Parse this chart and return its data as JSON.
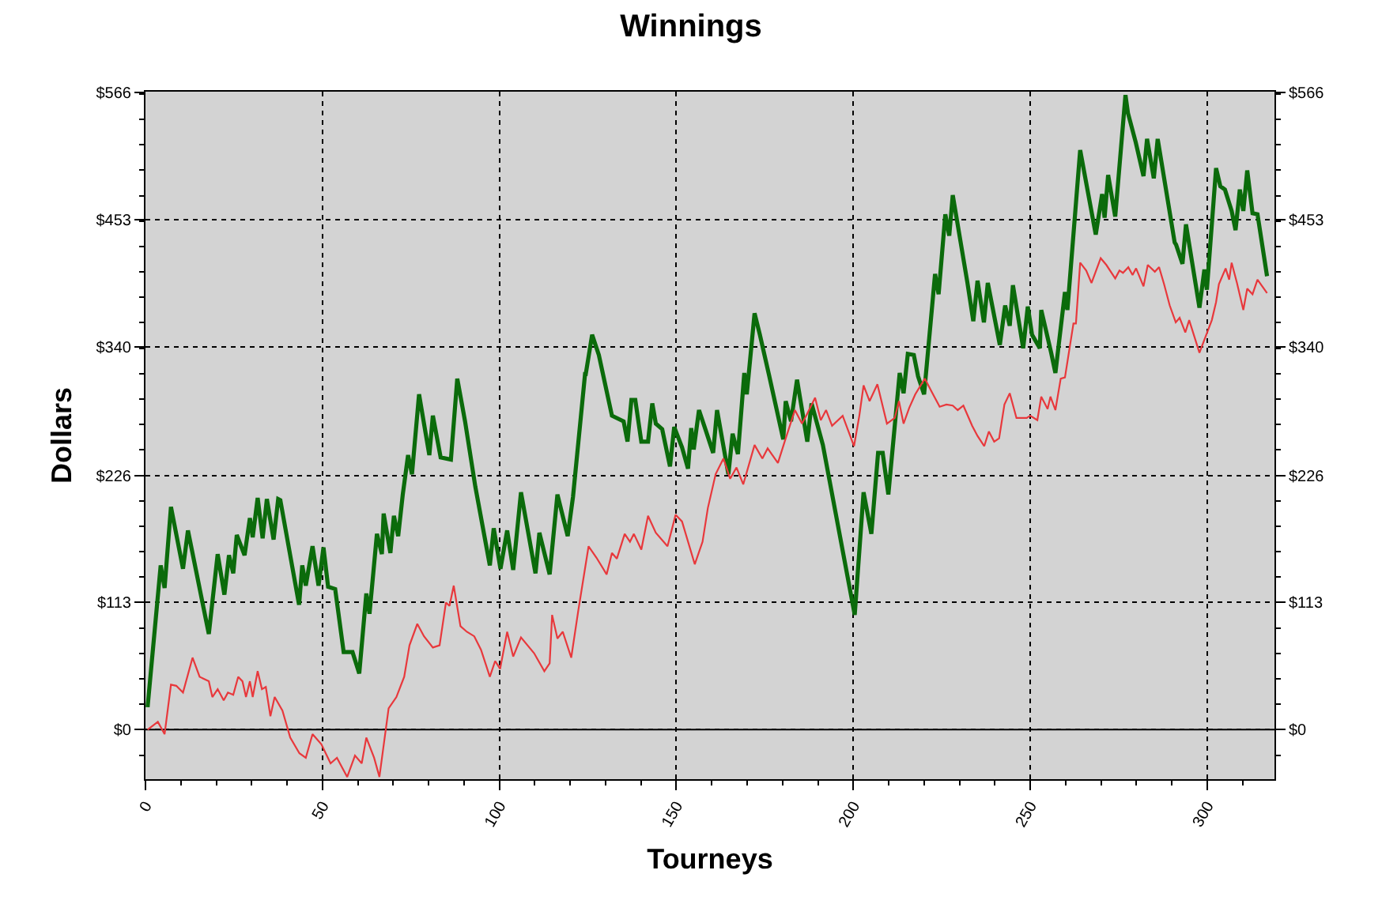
{
  "chart_data": {
    "type": "line",
    "title": "Winnings",
    "xlabel": "Tourneys",
    "ylabel": "Dollars",
    "xlim": [
      0,
      319
    ],
    "xticks": [
      0,
      50,
      100,
      150,
      200,
      250,
      300
    ],
    "ylim": [
      -44,
      567
    ],
    "yticks": [
      {
        "value": 0,
        "label": "$0"
      },
      {
        "value": 113,
        "label": "$113"
      },
      {
        "value": 226,
        "label": "$226"
      },
      {
        "value": 340,
        "label": "$340"
      },
      {
        "value": 453,
        "label": "$453"
      },
      {
        "value": 566,
        "label": "$566"
      }
    ],
    "y2lim": [
      -44,
      567
    ],
    "y2ticks": [
      {
        "value": 0,
        "label": "$0"
      },
      {
        "value": 113,
        "label": "$113"
      },
      {
        "value": 226,
        "label": "$226"
      },
      {
        "value": 340,
        "label": "$340"
      },
      {
        "value": 453,
        "label": "$453"
      },
      {
        "value": 566,
        "label": "$566"
      }
    ],
    "grid": true,
    "ref_lines": [
      {
        "axis": "y",
        "value": 0,
        "color": "#000000"
      }
    ],
    "series": [
      {
        "color": "#0b6b0b",
        "x": [
          0.6,
          4.3,
          5.4,
          7.2,
          10.6,
          12,
          17.9,
          20.4,
          22.3,
          23.6,
          24.8,
          25.8,
          28,
          29.5,
          30.3,
          31.7,
          33.1,
          34.3,
          36.2,
          37.5,
          38.1,
          43.4,
          44.3,
          45.3,
          47.2,
          48.9,
          50.3,
          51.6,
          53.6,
          56,
          58.5,
          60.4,
          62.4,
          63.3,
          65.4,
          66.8,
          67.3,
          69.2,
          70.2,
          71.4,
          72.7,
          74.2,
          75.3,
          77.3,
          80.2,
          81.2,
          83.4,
          86.3,
          88.1,
          90.3,
          93.2,
          97.3,
          98.4,
          100.3,
          102.2,
          103.9,
          106.1,
          110.2,
          111.3,
          114.2,
          116.4,
          119.3,
          120.8,
          124.2,
          124.4,
          126.2,
          128.1,
          131.8,
          135.1,
          136.2,
          137.3,
          138.4,
          140.1,
          142,
          143.2,
          144.2,
          146,
          148.2,
          149.4,
          151.6,
          153.3,
          154.2,
          154.9,
          156.4,
          158.2,
          160.4,
          161.5,
          164.7,
          165.9,
          167.4,
          169.2,
          169.9,
          172.1,
          173.6,
          176.2,
          180.2,
          180.9,
          182.4,
          184.1,
          187,
          188.2,
          191.4,
          200.4,
          202.9,
          205.1,
          207,
          208.3,
          209.9,
          213.1,
          214.2,
          215.4,
          217.1,
          218.3,
          220,
          223.1,
          224.1,
          226,
          227.1,
          228.1,
          232.2,
          233.9,
          235.1,
          236.9,
          238,
          241.4,
          242.9,
          244.2,
          245.1,
          248,
          249.3,
          250.5,
          252.7,
          253.1,
          255.9,
          257.1,
          259.8,
          260.5,
          264.1,
          268.5,
          270.3,
          271,
          272,
          274,
          276.9,
          277.6,
          279.8,
          282,
          283,
          284.9,
          286,
          290.8,
          291.2,
          293,
          294,
          297.8,
          299.2,
          299.9,
          302.5,
          303.7,
          305,
          306.9,
          308,
          309.2,
          310.2,
          311.3,
          312.8,
          314.2,
          316.9
        ],
        "values": [
          20,
          146,
          126,
          198,
          143,
          177,
          85,
          156,
          120,
          155,
          139,
          173,
          155,
          188,
          171,
          206,
          170,
          205,
          169,
          205,
          204,
          111,
          146,
          128,
          163,
          128,
          162,
          127,
          125,
          69,
          69,
          50,
          121,
          103,
          174,
          156,
          192,
          157,
          190,
          172,
          209,
          244,
          227,
          298,
          244,
          279,
          242,
          240,
          312,
          274,
          216,
          146,
          179,
          143,
          177,
          142,
          211,
          139,
          175,
          138,
          209,
          172,
          207,
          316,
          316,
          351,
          333,
          279,
          274,
          256,
          293,
          293,
          256,
          256,
          290,
          272,
          267,
          234,
          269,
          251,
          232,
          268,
          249,
          284,
          267,
          246,
          284,
          227,
          263,
          245,
          317,
          298,
          370,
          351,
          315,
          258,
          292,
          274,
          311,
          256,
          290,
          253,
          102,
          211,
          174,
          246,
          246,
          209,
          317,
          299,
          334,
          333,
          314,
          298,
          405,
          387,
          458,
          439,
          475,
          398,
          363,
          399,
          362,
          397,
          342,
          377,
          359,
          395,
          339,
          376,
          351,
          339,
          373,
          335,
          317,
          389,
          373,
          515,
          440,
          476,
          455,
          493,
          456,
          564,
          548,
          522,
          492,
          525,
          490,
          525,
          433,
          431,
          414,
          449,
          375,
          409,
          391,
          499,
          483,
          480,
          461,
          444,
          480,
          461,
          497,
          459,
          458,
          403
        ]
      },
      {
        "color": "#e8383c",
        "x": [
          0.6,
          3.5,
          5.4,
          7.2,
          8.7,
          10.6,
          13.3,
          15.3,
          17.9,
          18.9,
          20.4,
          22.1,
          23.3,
          24.8,
          26.2,
          27.4,
          28.4,
          29.5,
          30.3,
          31.7,
          32.9,
          34,
          35.3,
          36.5,
          38.7,
          40.9,
          43.5,
          45.3,
          47.2,
          49.7,
          52.3,
          54.1,
          57,
          59.2,
          61.1,
          62.4,
          64.6,
          66.1,
          68.7,
          70.9,
          73.1,
          74.6,
          76.8,
          78.7,
          81.2,
          83.1,
          84.9,
          85.9,
          87.1,
          89,
          90.8,
          92.9,
          94.8,
          97.3,
          98.8,
          100.2,
          102.2,
          103.9,
          106.1,
          109.8,
          112.7,
          114.2,
          114.9,
          116.4,
          117.9,
          120.3,
          122.3,
          125.2,
          127.4,
          130.3,
          131.8,
          133.2,
          135.4,
          136.9,
          138,
          140.1,
          142,
          144.2,
          147.5,
          149.8,
          151.6,
          155.2,
          157.4,
          158.9,
          161.1,
          163.3,
          165.2,
          167,
          168.9,
          172.1,
          174.3,
          175.8,
          178.7,
          180.6,
          183.5,
          185.5,
          186.7,
          189.2,
          190.8,
          192.3,
          194,
          197,
          200.2,
          201.7,
          202.9,
          204.6,
          206.8,
          209.5,
          211.7,
          212.9,
          214.2,
          215.8,
          217.5,
          220.2,
          222.2,
          224.4,
          226.3,
          228.1,
          229.5,
          231.1,
          233.6,
          235.1,
          237,
          238.3,
          239.8,
          241.2,
          242.7,
          244.2,
          246.1,
          249,
          250,
          252,
          253.1,
          254.9,
          255.7,
          257.1,
          258.6,
          259.8,
          262.2,
          262.9,
          264.1,
          265.8,
          267.3,
          269.9,
          271.5,
          274,
          275.2,
          276.2,
          277.7,
          278.9,
          279.9,
          282,
          283.2,
          285.2,
          286.4,
          287.8,
          289.4,
          291.1,
          292.2,
          293.8,
          294.9,
          297.8,
          299.5,
          301.3,
          302.5,
          303.3,
          305.2,
          306.2,
          306.9,
          308.4,
          310.2,
          311.3,
          312.8,
          314.2,
          316.9
        ],
        "values": [
          0,
          7,
          -4,
          40,
          39,
          33,
          64,
          47,
          43,
          29,
          36,
          26,
          33,
          31,
          47,
          43,
          29,
          43,
          29,
          52,
          36,
          38,
          12,
          29,
          17,
          -7,
          -21,
          -25,
          -4,
          -13,
          -30,
          -25,
          -42,
          -23,
          -30,
          -7,
          -25,
          -42,
          19,
          29,
          47,
          75,
          94,
          83,
          73,
          75,
          113,
          110,
          128,
          92,
          87,
          83,
          71,
          47,
          61,
          54,
          87,
          65,
          82,
          68,
          52,
          59,
          102,
          81,
          87,
          64,
          106,
          163,
          153,
          138,
          157,
          152,
          174,
          167,
          174,
          160,
          190,
          175,
          163,
          191,
          185,
          147,
          167,
          197,
          227,
          241,
          223,
          233,
          218,
          253,
          241,
          250,
          237,
          256,
          284,
          272,
          279,
          295,
          275,
          284,
          270,
          279,
          252,
          279,
          306,
          292,
          307,
          272,
          277,
          292,
          272,
          286,
          298,
          312,
          300,
          287,
          289,
          288,
          284,
          288,
          270,
          261,
          252,
          265,
          256,
          259,
          289,
          299,
          277,
          277,
          279,
          275,
          296,
          285,
          296,
          284,
          312,
          313,
          361,
          361,
          415,
          408,
          397,
          419,
          413,
          401,
          408,
          406,
          411,
          404,
          410,
          394,
          413,
          407,
          411,
          396,
          377,
          362,
          366,
          353,
          364,
          335,
          349,
          364,
          380,
          396,
          410,
          400,
          415,
          397,
          373,
          392,
          387,
          400,
          388
        ]
      }
    ]
  }
}
